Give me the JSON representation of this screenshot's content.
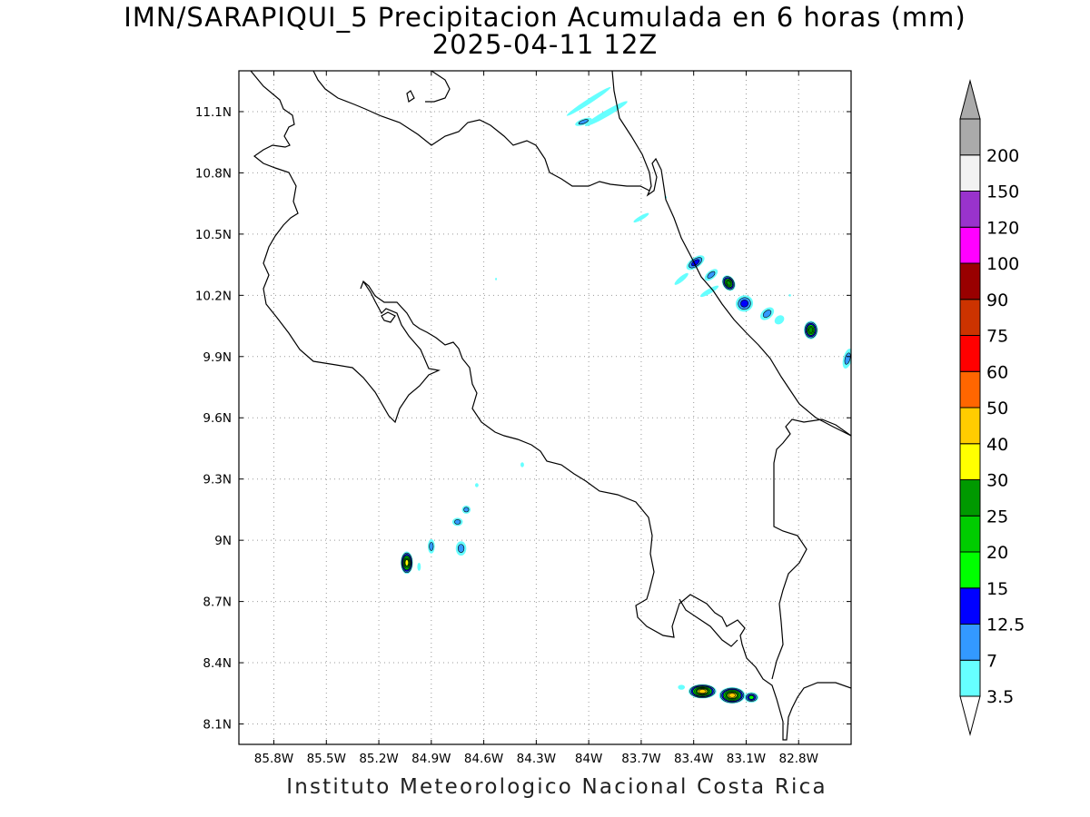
{
  "title": {
    "line1": "IMN/SARAPIQUI_5 Precipitacion Acumulada en 6 horas (mm)",
    "line2": "2025-04-11 12Z"
  },
  "footer": "Instituto Meteorologico Nacional Costa Rica",
  "map": {
    "lon_range": [
      -86.0,
      -82.5
    ],
    "lat_range": [
      8.0,
      11.3
    ],
    "grid": "dotted",
    "x_ticks": [
      {
        "value": -85.8,
        "label": "85.8W"
      },
      {
        "value": -85.5,
        "label": "85.5W"
      },
      {
        "value": -85.2,
        "label": "85.2W"
      },
      {
        "value": -84.9,
        "label": "84.9W"
      },
      {
        "value": -84.6,
        "label": "84.6W"
      },
      {
        "value": -84.3,
        "label": "84.3W"
      },
      {
        "value": -84.0,
        "label": "84W"
      },
      {
        "value": -83.7,
        "label": "83.7W"
      },
      {
        "value": -83.4,
        "label": "83.4W"
      },
      {
        "value": -83.1,
        "label": "83.1W"
      },
      {
        "value": -82.8,
        "label": "82.8W"
      }
    ],
    "y_ticks": [
      {
        "value": 8.1,
        "label": "8.1N"
      },
      {
        "value": 8.4,
        "label": "8.4N"
      },
      {
        "value": 8.7,
        "label": "8.7N"
      },
      {
        "value": 9.0,
        "label": "9N"
      },
      {
        "value": 9.3,
        "label": "9.3N"
      },
      {
        "value": 9.6,
        "label": "9.6N"
      },
      {
        "value": 9.9,
        "label": "9.9N"
      },
      {
        "value": 10.2,
        "label": "10.2N"
      },
      {
        "value": 10.5,
        "label": "10.5N"
      },
      {
        "value": 10.8,
        "label": "10.8N"
      },
      {
        "value": 11.1,
        "label": "11.1N"
      }
    ]
  },
  "colorbar": {
    "levels": [
      {
        "label": "3.5",
        "color": "#66ffff"
      },
      {
        "label": "7",
        "color": "#3399ff"
      },
      {
        "label": "12.5",
        "color": "#0000ff"
      },
      {
        "label": "15",
        "color": "#00ff00"
      },
      {
        "label": "20",
        "color": "#00cc00"
      },
      {
        "label": "25",
        "color": "#009900"
      },
      {
        "label": "30",
        "color": "#ffff00"
      },
      {
        "label": "40",
        "color": "#ffcc00"
      },
      {
        "label": "50",
        "color": "#ff6600"
      },
      {
        "label": "60",
        "color": "#ff0000"
      },
      {
        "label": "75",
        "color": "#cc3300"
      },
      {
        "label": "90",
        "color": "#990000"
      },
      {
        "label": "100",
        "color": "#ff00ff"
      },
      {
        "label": "120",
        "color": "#9933cc"
      },
      {
        "label": "150",
        "color": "#f2f2f2"
      },
      {
        "label": "200",
        "color": "#aaaaaa"
      }
    ],
    "under_color": "#ffffff",
    "over_color": "#aaaaaa"
  },
  "precip_cells": [
    {
      "lon": -85.04,
      "lat": 8.89,
      "rx": 0.035,
      "ry": 0.055,
      "rot": 0,
      "max": 35
    },
    {
      "lon": -84.9,
      "lat": 8.97,
      "rx": 0.02,
      "ry": 0.035,
      "rot": 0,
      "max": 10
    },
    {
      "lon": -84.73,
      "lat": 8.96,
      "rx": 0.03,
      "ry": 0.035,
      "rot": 0,
      "max": 8
    },
    {
      "lon": -84.75,
      "lat": 9.09,
      "rx": 0.03,
      "ry": 0.02,
      "rot": 0,
      "max": 8
    },
    {
      "lon": -84.7,
      "lat": 9.15,
      "rx": 0.025,
      "ry": 0.02,
      "rot": 0,
      "max": 8
    },
    {
      "lon": -84.64,
      "lat": 9.27,
      "rx": 0.01,
      "ry": 0.01,
      "rot": 0,
      "max": 4
    },
    {
      "lon": -84.38,
      "lat": 9.37,
      "rx": 0.01,
      "ry": 0.012,
      "rot": 0,
      "max": 4
    },
    {
      "lon": -84.97,
      "lat": 8.87,
      "rx": 0.01,
      "ry": 0.02,
      "rot": 0,
      "max": 4
    },
    {
      "lon": -83.35,
      "lat": 8.26,
      "rx": 0.08,
      "ry": 0.035,
      "rot": 0,
      "max": 45
    },
    {
      "lon": -83.18,
      "lat": 8.24,
      "rx": 0.075,
      "ry": 0.04,
      "rot": 0,
      "max": 45
    },
    {
      "lon": -83.07,
      "lat": 8.23,
      "rx": 0.04,
      "ry": 0.025,
      "rot": 0,
      "max": 16
    },
    {
      "lon": -83.47,
      "lat": 8.28,
      "rx": 0.02,
      "ry": 0.012,
      "rot": 0,
      "max": 4
    },
    {
      "lon": -83.39,
      "lat": 10.36,
      "rx": 0.06,
      "ry": 0.025,
      "rot": -35,
      "max": 13
    },
    {
      "lon": -83.3,
      "lat": 10.3,
      "rx": 0.045,
      "ry": 0.02,
      "rot": -40,
      "max": 10
    },
    {
      "lon": -83.2,
      "lat": 10.26,
      "rx": 0.035,
      "ry": 0.04,
      "rot": -30,
      "max": 28
    },
    {
      "lon": -83.11,
      "lat": 10.16,
      "rx": 0.05,
      "ry": 0.04,
      "rot": -20,
      "max": 14
    },
    {
      "lon": -82.98,
      "lat": 10.11,
      "rx": 0.045,
      "ry": 0.025,
      "rot": -40,
      "max": 10
    },
    {
      "lon": -82.91,
      "lat": 10.08,
      "rx": 0.03,
      "ry": 0.02,
      "rot": -40,
      "max": 4
    },
    {
      "lon": -82.73,
      "lat": 10.03,
      "rx": 0.04,
      "ry": 0.045,
      "rot": 0,
      "max": 28
    },
    {
      "lon": -82.52,
      "lat": 9.89,
      "rx": 0.025,
      "ry": 0.05,
      "rot": 15,
      "max": 9
    },
    {
      "lon": -83.47,
      "lat": 10.28,
      "rx": 0.05,
      "ry": 0.012,
      "rot": -40,
      "max": 4
    },
    {
      "lon": -83.31,
      "lat": 10.22,
      "rx": 0.06,
      "ry": 0.012,
      "rot": -30,
      "max": 4
    },
    {
      "lon": -83.7,
      "lat": 10.58,
      "rx": 0.05,
      "ry": 0.01,
      "rot": -30,
      "max": 4
    },
    {
      "lon": -84.0,
      "lat": 11.15,
      "rx": 0.15,
      "ry": 0.012,
      "rot": -33,
      "max": 4
    },
    {
      "lon": -83.9,
      "lat": 11.09,
      "rx": 0.14,
      "ry": 0.015,
      "rot": -30,
      "max": 5
    },
    {
      "lon": -84.03,
      "lat": 11.05,
      "rx": 0.05,
      "ry": 0.015,
      "rot": -20,
      "max": 9
    },
    {
      "lon": -84.53,
      "lat": 10.28,
      "rx": 0.005,
      "ry": 0.006,
      "rot": 0,
      "max": 4
    },
    {
      "lon": -83.56,
      "lat": 10.68,
      "rx": 0.006,
      "ry": 0.006,
      "rot": 0,
      "max": 4
    },
    {
      "lon": -82.85,
      "lat": 10.2,
      "rx": 0.006,
      "ry": 0.006,
      "rot": 0,
      "max": 4
    }
  ]
}
